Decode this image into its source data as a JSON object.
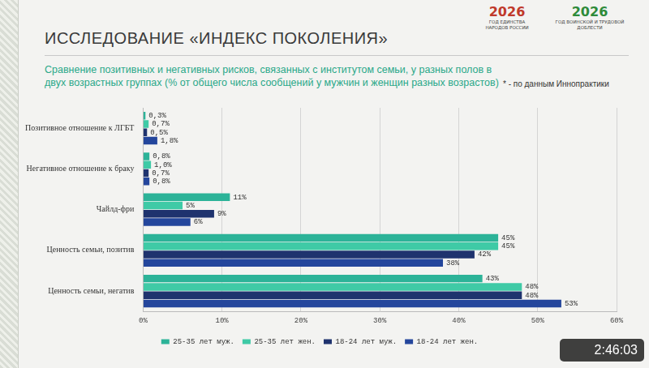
{
  "header": {
    "title": "ИССЛЕДОВАНИЕ «ИНДЕКС ПОКОЛЕНИЯ»",
    "subtitle": "Сравнение позитивных и негативных рисков, связанных с институтом семьи, у разных полов в двух возрастных группах (% от общего числа сообщений у мужчин и женщин разных возрастов)",
    "note": "* - по данным Иннопрактики"
  },
  "logos": [
    {
      "big": "2026",
      "small": "ГОД ЕДИНСТВА НАРОДОВ РОССИИ"
    },
    {
      "big": "2026",
      "small": "ГОД ВОИНСКОЙ И ТРУДОВОЙ ДОБЛЕСТИ"
    }
  ],
  "video_time": "2:46:03",
  "chart_data": {
    "type": "bar",
    "orientation": "horizontal",
    "grid": true,
    "data_labels": true,
    "legend": "bottom",
    "categories": [
      "Позитивное отношение к ЛГБТ",
      "Негативное отношение к браку",
      "Чайлд-фри",
      "Ценность семьи, позитив",
      "Ценность семьи, негатив"
    ],
    "series": [
      {
        "name": "25-35 лет муж.",
        "color": "#2cb398",
        "values": [
          0.3,
          0.8,
          11,
          45,
          43
        ],
        "value_labels": [
          "0,3%",
          "0,8%",
          "11%",
          "45%",
          "43%"
        ]
      },
      {
        "name": "25-35 лет жен.",
        "color": "#3fcaa6",
        "values": [
          0.7,
          1.0,
          5,
          45,
          48
        ],
        "value_labels": [
          "0,7%",
          "1,0%",
          "5%",
          "45%",
          "48%"
        ]
      },
      {
        "name": "18-24 лет муж.",
        "color": "#1f336e",
        "values": [
          0.5,
          0.7,
          9,
          42,
          48
        ],
        "value_labels": [
          "0,5%",
          "0,7%",
          "9%",
          "42%",
          "48%"
        ]
      },
      {
        "name": "18-24 лет жен.",
        "color": "#24469c",
        "values": [
          1.8,
          0.8,
          6,
          38,
          53
        ],
        "value_labels": [
          "1,8%",
          "0,8%",
          "6%",
          "38%",
          "53%"
        ]
      }
    ],
    "xlim": [
      0,
      60
    ],
    "xticks": [
      {
        "value": 0,
        "label": "0%"
      },
      {
        "value": 10,
        "label": "10%"
      },
      {
        "value": 20,
        "label": "20%"
      },
      {
        "value": 30,
        "label": "30%"
      },
      {
        "value": 40,
        "label": "40%"
      },
      {
        "value": 50,
        "label": "50%"
      },
      {
        "value": 60,
        "label": "60%"
      }
    ]
  }
}
